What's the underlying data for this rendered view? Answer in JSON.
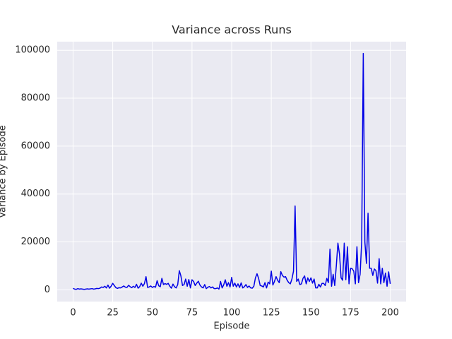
{
  "chart_data": {
    "type": "line",
    "title": "Variance across Runs",
    "xlabel": "Episode",
    "ylabel": "Variance by Episode",
    "x": [
      0,
      1,
      2,
      3,
      4,
      5,
      6,
      7,
      8,
      9,
      10,
      11,
      12,
      13,
      14,
      15,
      16,
      17,
      18,
      19,
      20,
      21,
      22,
      23,
      24,
      25,
      26,
      27,
      28,
      29,
      30,
      31,
      32,
      33,
      34,
      35,
      36,
      37,
      38,
      39,
      40,
      41,
      42,
      43,
      44,
      45,
      46,
      47,
      48,
      49,
      50,
      51,
      52,
      53,
      54,
      55,
      56,
      57,
      58,
      59,
      60,
      61,
      62,
      63,
      64,
      65,
      66,
      67,
      68,
      69,
      70,
      71,
      72,
      73,
      74,
      75,
      76,
      77,
      78,
      79,
      80,
      81,
      82,
      83,
      84,
      85,
      86,
      87,
      88,
      89,
      90,
      91,
      92,
      93,
      94,
      95,
      96,
      97,
      98,
      99,
      100,
      101,
      102,
      103,
      104,
      105,
      106,
      107,
      108,
      109,
      110,
      111,
      112,
      113,
      114,
      115,
      116,
      117,
      118,
      119,
      120,
      121,
      122,
      123,
      124,
      125,
      126,
      127,
      128,
      129,
      130,
      131,
      132,
      133,
      134,
      135,
      136,
      137,
      138,
      139,
      140,
      141,
      142,
      143,
      144,
      145,
      146,
      147,
      148,
      149,
      150,
      151,
      152,
      153,
      154,
      155,
      156,
      157,
      158,
      159,
      160,
      161,
      162,
      163,
      164,
      165,
      166,
      167,
      168,
      169,
      170,
      171,
      172,
      173,
      174,
      175,
      176,
      177,
      178,
      179,
      180,
      181,
      182,
      183,
      184,
      185,
      186,
      187,
      188,
      189,
      190,
      191,
      192,
      193,
      194,
      195,
      196,
      197,
      198,
      199,
      200
    ],
    "values": [
      600,
      300,
      200,
      500,
      300,
      400,
      300,
      200,
      300,
      400,
      300,
      400,
      500,
      300,
      400,
      600,
      500,
      700,
      1200,
      1000,
      1500,
      800,
      2000,
      700,
      1500,
      2700,
      1800,
      900,
      600,
      900,
      800,
      1200,
      1600,
      1100,
      1000,
      1900,
      1300,
      900,
      1500,
      1000,
      2300,
      700,
      1300,
      2800,
      1500,
      2600,
      5500,
      1000,
      1200,
      1600,
      1000,
      1400,
      1100,
      3800,
      1700,
      1300,
      4800,
      2200,
      2600,
      2300,
      2700,
      1500,
      700,
      2400,
      1300,
      800,
      2200,
      8000,
      5800,
      1800,
      2200,
      4500,
      1500,
      4300,
      800,
      4200,
      3500,
      1800,
      2800,
      3600,
      2000,
      1200,
      800,
      2200,
      500,
      1100,
      1400,
      800,
      1200,
      500,
      500,
      800,
      300,
      3500,
      800,
      2100,
      4200,
      1500,
      3000,
      1200,
      5200,
      1500,
      2800,
      1200,
      2500,
      1000,
      2900,
      800,
      1300,
      2200,
      1000,
      1600,
      800,
      700,
      1500,
      5000,
      6700,
      4800,
      1800,
      1600,
      1200,
      3000,
      800,
      3200,
      2500,
      7800,
      2000,
      3500,
      5500,
      4000,
      3000,
      7600,
      6000,
      5300,
      5500,
      4000,
      3000,
      2500,
      4500,
      7800,
      35000,
      3500,
      4500,
      2200,
      2500,
      4800,
      5800,
      2500,
      5000,
      3500,
      5000,
      2800,
      4500,
      800,
      800,
      2300,
      1200,
      2700,
      2700,
      1800,
      4800,
      3000,
      17000,
      1500,
      6500,
      1800,
      10000,
      19500,
      15000,
      5000,
      4000,
      19500,
      4200,
      18000,
      2500,
      9000,
      8800,
      7800,
      2500,
      18000,
      3000,
      6500,
      20000,
      98700,
      20000,
      11000,
      32000,
      9000,
      9000,
      6000,
      8700,
      8000,
      2800,
      13000,
      2500,
      9000,
      3000,
      7000,
      1500,
      7500,
      2500
    ],
    "color": "#0000e6",
    "xlim": [
      -10,
      210
    ],
    "ylim": [
      -4900,
      103600
    ],
    "xticks": [
      0,
      25,
      50,
      75,
      100,
      125,
      150,
      175,
      200
    ],
    "yticks": [
      0,
      20000,
      40000,
      60000,
      80000,
      100000
    ],
    "grid": true
  }
}
